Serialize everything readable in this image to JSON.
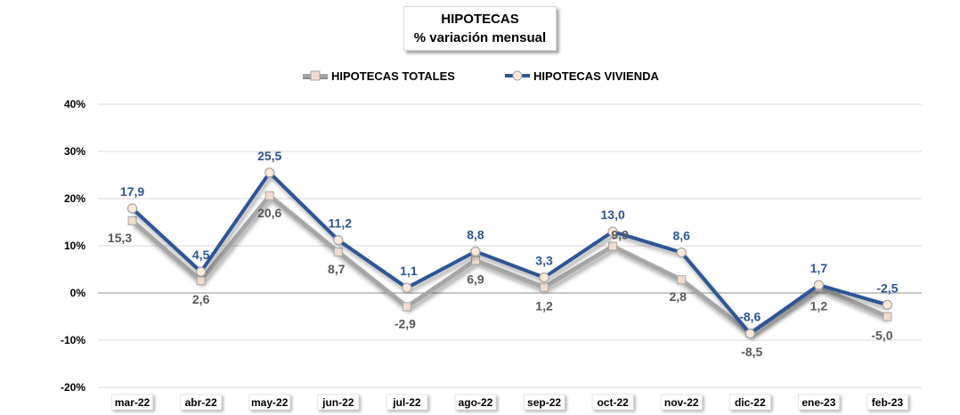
{
  "header": {
    "title_line1": "HIPOTECAS",
    "title_line2": "% variación mensual"
  },
  "colors": {
    "total_line": "#a6a6a6",
    "total_marker": "#f2dccd",
    "vivienda_line": "#2e5596",
    "vivienda_marker": "#fde9d9",
    "vivienda_label": "#2e5596",
    "total_label": "#595959",
    "gridline": "#d9d9d9",
    "zero_line": "#a6a6a6"
  },
  "chart_data": {
    "type": "line",
    "title": "HIPOTECAS % variación mensual",
    "categories": [
      "mar-22",
      "abr-22",
      "may-22",
      "jun-22",
      "jul-22",
      "ago-22",
      "sep-22",
      "oct-22",
      "nov-22",
      "dic-22",
      "ene-23",
      "feb-23"
    ],
    "series": [
      {
        "name": "HIPOTECAS TOTALES",
        "values": [
          15.3,
          2.6,
          20.6,
          8.7,
          -2.9,
          6.9,
          1.2,
          9.9,
          2.8,
          -8.5,
          1.2,
          -5.0
        ],
        "labels": [
          "15,3",
          "2,6",
          "20,6",
          "8,7",
          "-2,9",
          "6,9",
          "1,2",
          "9,9",
          "2,8",
          "-8,5",
          "1,2",
          "-5,0"
        ],
        "marker": "square"
      },
      {
        "name": "HIPOTECAS VIVIENDA",
        "values": [
          17.9,
          4.5,
          25.5,
          11.2,
          1.1,
          8.8,
          3.3,
          13.0,
          8.6,
          -8.6,
          1.7,
          -2.5
        ],
        "labels": [
          "17,9",
          "4,5",
          "25,5",
          "11,2",
          "1,1",
          "8,8",
          "3,3",
          "13,0",
          "8,6",
          "-8,6",
          "1,7",
          "-2,5"
        ],
        "marker": "circle"
      }
    ],
    "ylim": [
      -20,
      40
    ],
    "yticks": [
      -20,
      -10,
      0,
      10,
      20,
      30,
      40
    ],
    "ytick_labels": [
      "-20%",
      "-10%",
      "0%",
      "10%",
      "20%",
      "30%",
      "40%"
    ],
    "grid": true,
    "legend_position": "top-center"
  }
}
